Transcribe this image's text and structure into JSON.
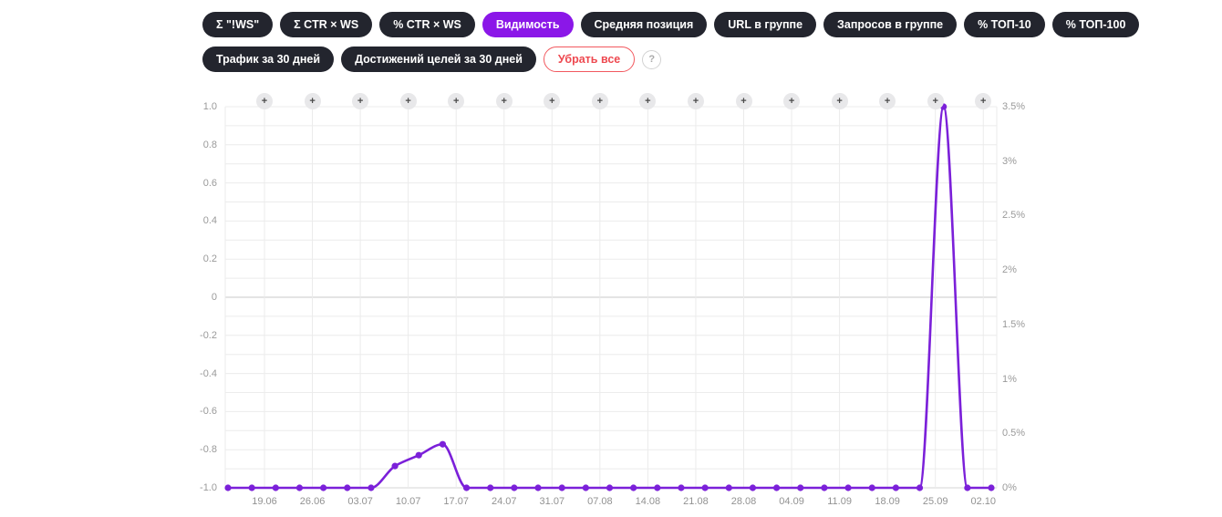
{
  "toolbar": {
    "rows": [
      [
        {
          "name": "sigma-ws",
          "label": "Σ \"!WS\"",
          "state": "default"
        },
        {
          "name": "sigma-ctr-ws",
          "label": "Σ CTR × WS",
          "state": "default"
        },
        {
          "name": "pct-ctr-ws",
          "label": "% CTR × WS",
          "state": "default"
        },
        {
          "name": "visibility",
          "label": "Видимость",
          "state": "active"
        },
        {
          "name": "average-position",
          "label": "Средняя позиция",
          "state": "default"
        },
        {
          "name": "url-in-group",
          "label": "URL в группе",
          "state": "default"
        },
        {
          "name": "queries-in-group",
          "label": "Запросов в группе",
          "state": "default"
        },
        {
          "name": "top-10",
          "label": "% ТОП-10",
          "state": "default"
        },
        {
          "name": "top-100",
          "label": "% ТОП-100",
          "state": "default"
        }
      ],
      [
        {
          "name": "traffic-30-days",
          "label": "Трафик за 30 дней",
          "state": "default"
        },
        {
          "name": "goals-30-days",
          "label": "Достижений целей за 30 дней",
          "state": "default"
        },
        {
          "name": "remove-all",
          "label": "Убрать все",
          "state": "remove"
        },
        {
          "name": "help",
          "label": "?",
          "state": "help"
        }
      ]
    ],
    "colors": {
      "pill_bg": "#23252e",
      "pill_text": "#ffffff",
      "active_bg": "#8b17e8",
      "remove_color": "#ee4950"
    }
  },
  "chart_data": {
    "type": "line",
    "title": "",
    "series": [
      {
        "name": "Видимость",
        "unit": "%",
        "color": "#7b20d9",
        "values": [
          0,
          0,
          0,
          0,
          0,
          0,
          0,
          0.2,
          0.3,
          0.4,
          0,
          0,
          0,
          0,
          0,
          0,
          0,
          0,
          0,
          0,
          0,
          0,
          0,
          0,
          0,
          0,
          0,
          0,
          0,
          0,
          3.5,
          0,
          0
        ]
      }
    ],
    "points_per_week": 2,
    "x_labels": [
      "19.06",
      "26.06",
      "03.07",
      "10.07",
      "17.07",
      "24.07",
      "31.07",
      "07.08",
      "14.08",
      "21.08",
      "28.08",
      "04.09",
      "11.09",
      "18.09",
      "25.09",
      "02.10"
    ],
    "left_axis": {
      "min": -1.0,
      "max": 1.0,
      "tick_step": 0.2,
      "minor_step": 0.1,
      "ticks": [
        "1.0",
        "0.8",
        "0.6",
        "0.4",
        "0.2",
        "0",
        "-0.2",
        "-0.4",
        "-0.6",
        "-0.8",
        "-1.0"
      ]
    },
    "right_axis": {
      "min": 0,
      "max": 3.5,
      "tick_step": 0.5,
      "ticks": [
        "3.5%",
        "3%",
        "2.5%",
        "2%",
        "1.5%",
        "1%",
        "0.5%",
        "0%"
      ]
    },
    "grid": true,
    "legend": "none",
    "add_button_glyph": "+",
    "colors": {
      "line": "#7b20d9",
      "grid_minor": "#ececec",
      "grid_vertical": "#ebebeb",
      "zero_line": "#c8c8c8",
      "baseline": "#d6d6d6",
      "tick_text": "#9a9a9a"
    }
  }
}
